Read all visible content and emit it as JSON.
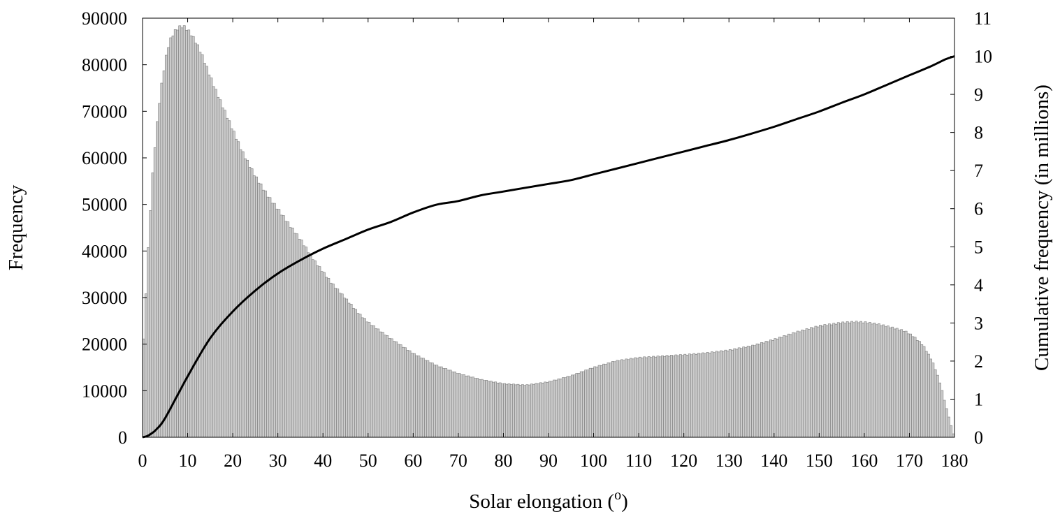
{
  "chart_data": {
    "type": "bar",
    "title": "",
    "xlabel": "Solar elongation (",
    "xlabel_superscript": "o",
    "xlabel_suffix": ")",
    "ylabel": "Frequency",
    "y2label": "Cumulative frequency (in millions)",
    "xlim": [
      0,
      180
    ],
    "ylim": [
      0,
      90000
    ],
    "y2lim": [
      0,
      11
    ],
    "xticks": [
      "0",
      "10",
      "20",
      "30",
      "40",
      "50",
      "60",
      "70",
      "80",
      "90",
      "100",
      "110",
      "120",
      "130",
      "140",
      "150",
      "160",
      "170",
      "180"
    ],
    "yticks": [
      "0",
      "10000",
      "20000",
      "30000",
      "40000",
      "50000",
      "60000",
      "70000",
      "80000",
      "90000"
    ],
    "y2ticks": [
      "0",
      "1",
      "2",
      "3",
      "4",
      "5",
      "6",
      "7",
      "8",
      "9",
      "10",
      "11"
    ],
    "grid": false,
    "bin_width": 0.5,
    "series": [
      {
        "kind": "histogram",
        "color": "#cccccc",
        "edge_color": "#7a7a7a",
        "profile": [
          [
            0,
            16000
          ],
          [
            0.5,
            26000
          ],
          [
            1,
            36000
          ],
          [
            1.5,
            45000
          ],
          [
            2,
            53000
          ],
          [
            2.5,
            60000
          ],
          [
            3,
            65000
          ],
          [
            3.5,
            70000
          ],
          [
            4,
            74000
          ],
          [
            4.5,
            77500
          ],
          [
            5,
            80500
          ],
          [
            5.5,
            83000
          ],
          [
            6,
            85000
          ],
          [
            7,
            87000
          ],
          [
            8,
            88000
          ],
          [
            9,
            88300
          ],
          [
            10,
            87500
          ],
          [
            11,
            86200
          ],
          [
            12,
            84500
          ],
          [
            13,
            82500
          ],
          [
            14,
            80000
          ],
          [
            15,
            77500
          ],
          [
            16,
            75000
          ],
          [
            18,
            70500
          ],
          [
            20,
            66000
          ],
          [
            22,
            61500
          ],
          [
            25,
            56000
          ],
          [
            28,
            51500
          ],
          [
            30,
            49000
          ],
          [
            33,
            45000
          ],
          [
            35,
            42500
          ],
          [
            38,
            38000
          ],
          [
            40,
            35500
          ],
          [
            42,
            33000
          ],
          [
            45,
            29800
          ],
          [
            48,
            26500
          ],
          [
            50,
            24700
          ],
          [
            55,
            21200
          ],
          [
            60,
            18000
          ],
          [
            65,
            15500
          ],
          [
            70,
            13700
          ],
          [
            75,
            12400
          ],
          [
            80,
            11500
          ],
          [
            85,
            11200
          ],
          [
            90,
            11900
          ],
          [
            95,
            13200
          ],
          [
            100,
            15000
          ],
          [
            105,
            16400
          ],
          [
            110,
            17100
          ],
          [
            115,
            17400
          ],
          [
            120,
            17700
          ],
          [
            125,
            18100
          ],
          [
            130,
            18700
          ],
          [
            135,
            19600
          ],
          [
            140,
            21000
          ],
          [
            145,
            22600
          ],
          [
            150,
            23900
          ],
          [
            155,
            24600
          ],
          [
            158,
            24800
          ],
          [
            160,
            24700
          ],
          [
            163,
            24300
          ],
          [
            166,
            23600
          ],
          [
            169,
            22800
          ],
          [
            171,
            21600
          ],
          [
            173,
            19800
          ],
          [
            175,
            16500
          ],
          [
            176,
            14000
          ],
          [
            177,
            11000
          ],
          [
            178,
            7000
          ],
          [
            179,
            3500
          ],
          [
            179.5,
            1500
          ],
          [
            180,
            0
          ]
        ]
      },
      {
        "kind": "cumulative-line",
        "axis": "right",
        "color": "#000000",
        "x": [
          0,
          1,
          2,
          3,
          5,
          10,
          15,
          20,
          25,
          30,
          35,
          40,
          45,
          50,
          55,
          60,
          65,
          70,
          75,
          80,
          85,
          90,
          95,
          100,
          105,
          110,
          115,
          120,
          125,
          130,
          135,
          140,
          145,
          150,
          155,
          160,
          165,
          170,
          175,
          178,
          180
        ],
        "y": [
          0,
          0.03,
          0.1,
          0.2,
          0.5,
          1.6,
          2.6,
          3.3,
          3.85,
          4.3,
          4.65,
          4.95,
          5.2,
          5.45,
          5.65,
          5.9,
          6.1,
          6.2,
          6.35,
          6.45,
          6.55,
          6.65,
          6.75,
          6.9,
          7.05,
          7.2,
          7.35,
          7.5,
          7.65,
          7.8,
          7.97,
          8.15,
          8.35,
          8.55,
          8.78,
          9.0,
          9.25,
          9.5,
          9.75,
          9.92,
          10.0
        ]
      }
    ]
  }
}
